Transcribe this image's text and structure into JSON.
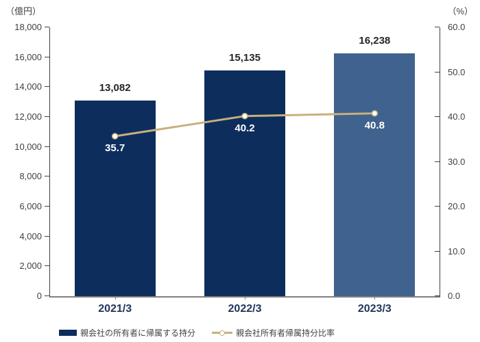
{
  "chart_data": {
    "type": "combo",
    "title": "",
    "grid": false,
    "legend_position": "bottom",
    "categories": [
      "2021/3",
      "2022/3",
      "2023/3"
    ],
    "series": [
      {
        "name": "親会社の所有者に帰属する持分",
        "type": "bar",
        "axis": "left",
        "values": [
          13082,
          15135,
          16238
        ],
        "labels": [
          "13,082",
          "15,135",
          "16,238"
        ],
        "bar_colors": [
          "#0D2E5D",
          "#0D2E5D",
          "#40628E"
        ]
      },
      {
        "name": "親会社所有者帰属持分比率",
        "type": "line",
        "axis": "right",
        "values": [
          35.7,
          40.2,
          40.8
        ],
        "labels": [
          "35.7",
          "40.2",
          "40.8"
        ],
        "line_color": "#C9AF7E",
        "marker_fill": "#FFFFFF"
      }
    ],
    "left_axis": {
      "unit": "（億円）",
      "min": 0,
      "max": 18000,
      "step": 2000,
      "tick_labels": [
        "0",
        "2,000",
        "4,000",
        "6,000",
        "8,000",
        "10,000",
        "12,000",
        "14,000",
        "16,000",
        "18,000"
      ]
    },
    "right_axis": {
      "unit": "（%）",
      "min": 0,
      "max": 60,
      "step": 10,
      "tick_labels": [
        "0.0",
        "10.0",
        "20.0",
        "30.0",
        "40.0",
        "50.0",
        "60.0"
      ]
    }
  },
  "colors": {
    "bar_navy": "#0D2E5D",
    "bar_steel": "#40628E",
    "line_tan": "#C9AF7E",
    "marker_fill": "#FFFFFF",
    "axis_text": "#404040",
    "x_label_text": "#21355B",
    "value_label_text": "#262626",
    "axis_line_side": "#404040",
    "axis_line_bottom": "#808080"
  }
}
